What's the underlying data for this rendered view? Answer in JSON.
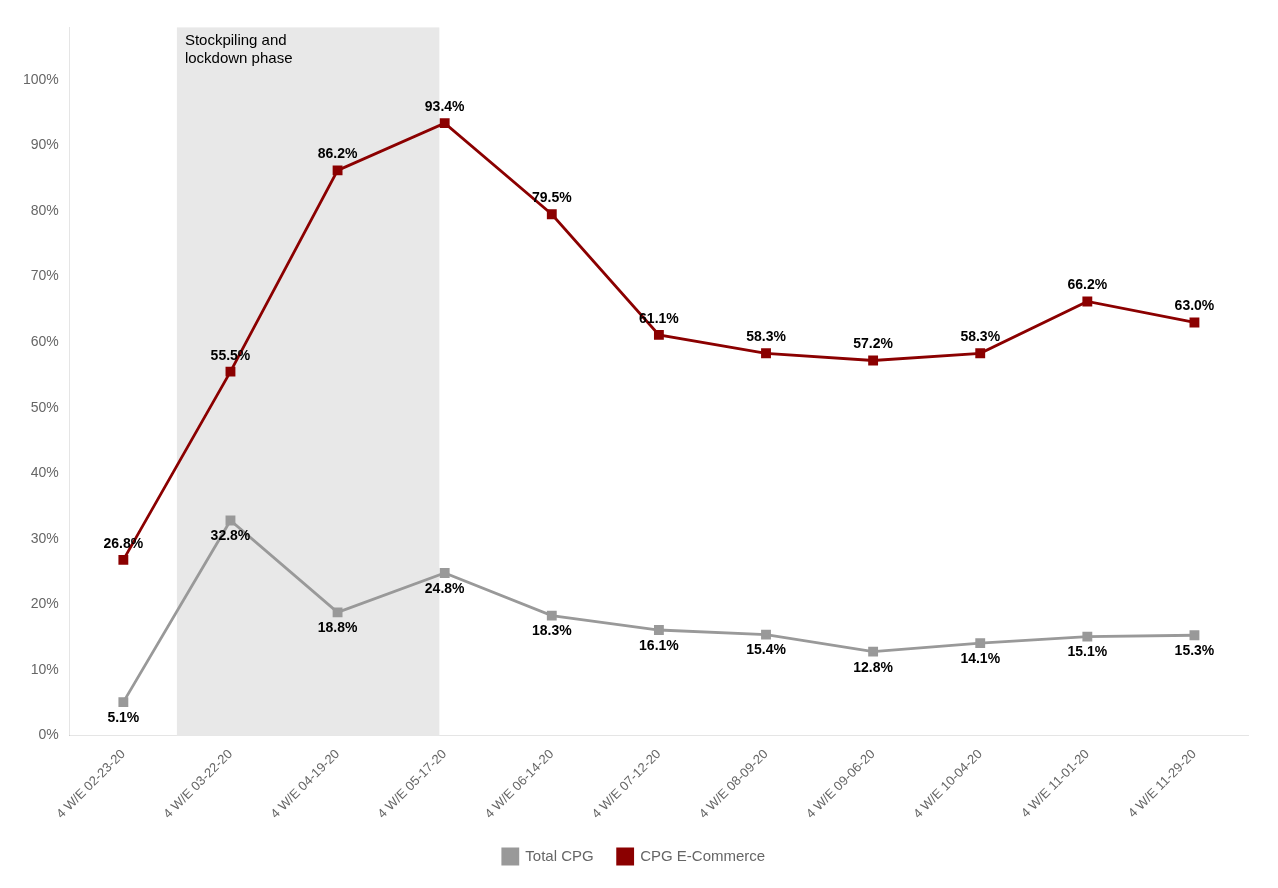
{
  "chart_data": {
    "type": "line",
    "categories": [
      "4 W/E 02-23-20",
      "4 W/E 03-22-20",
      "4 W/E 04-19-20",
      "4 W/E 05-17-20",
      "4 W/E 06-14-20",
      "4 W/E 07-12-20",
      "4 W/E 08-09-20",
      "4 W/E 09-06-20",
      "4 W/E 10-04-20",
      "4 W/E 11-01-20",
      "4 W/E 11-29-20"
    ],
    "series": [
      {
        "name": "Total CPG",
        "color": "#999999",
        "values": [
          5.1,
          32.8,
          18.8,
          24.8,
          18.3,
          16.1,
          15.4,
          12.8,
          14.1,
          15.1,
          15.3
        ],
        "value_labels": [
          "5.1%",
          "32.8%",
          "18.8%",
          "24.8%",
          "18.3%",
          "16.1%",
          "15.4%",
          "12.8%",
          "14.1%",
          "15.1%",
          "15.3%"
        ]
      },
      {
        "name": "CPG E-Commerce",
        "color": "#8B0000",
        "values": [
          26.8,
          55.5,
          86.2,
          93.4,
          79.5,
          61.1,
          58.3,
          57.2,
          58.3,
          66.2,
          63.0
        ],
        "value_labels": [
          "26.8%",
          "55.5%",
          "86.2%",
          "93.4%",
          "79.5%",
          "61.1%",
          "58.3%",
          "57.2%",
          "58.3%",
          "66.2%",
          "63.0%"
        ]
      }
    ],
    "ylim": [
      0,
      108
    ],
    "yticks": [
      {
        "value": 0,
        "label": "0%"
      },
      {
        "value": 10,
        "label": "10%"
      },
      {
        "value": 20,
        "label": "20%"
      },
      {
        "value": 30,
        "label": "30%"
      },
      {
        "value": 40,
        "label": "40%"
      },
      {
        "value": 50,
        "label": "50%"
      },
      {
        "value": 60,
        "label": "60%"
      },
      {
        "value": 70,
        "label": "70%"
      },
      {
        "value": 80,
        "label": "80%"
      },
      {
        "value": 90,
        "label": "90%"
      },
      {
        "value": 100,
        "label": "100%"
      }
    ],
    "grid": false,
    "legend": "bottom",
    "marker": "square",
    "data_labels": true,
    "annotations": [
      {
        "text": "Stockpiling and\nlockdown phase",
        "span": [
          "4 W/E 03-22-20",
          "4 W/E 04-19-20"
        ],
        "color": "#e8e8e8"
      }
    ]
  }
}
